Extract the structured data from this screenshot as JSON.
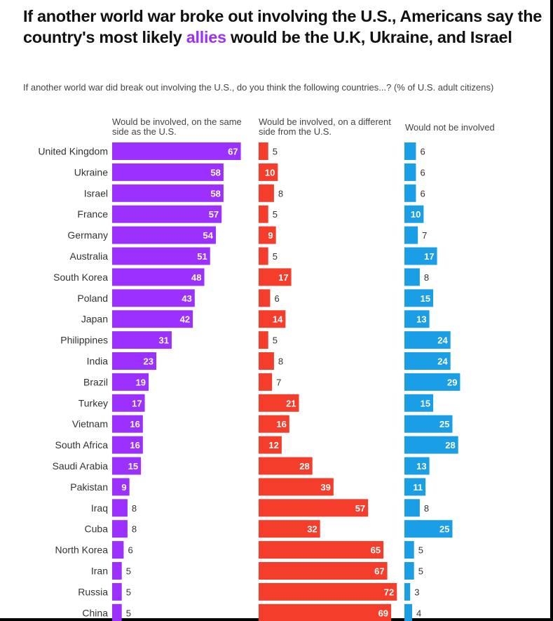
{
  "chart_data": {
    "type": "bar",
    "orientation": "horizontal",
    "title_parts": [
      "If another world war broke out involving the U.S., Americans say the country's most likely ",
      "allies",
      " would be the U.K, Ukraine, and Israel"
    ],
    "subtitle": "If another world war did break out involving the U.S., do you think the following countries...? (% of U.S. adult citizens)",
    "categories": [
      "United Kingdom",
      "Ukraine",
      "Israel",
      "France",
      "Germany",
      "Australia",
      "South Korea",
      "Poland",
      "Japan",
      "Philippines",
      "India",
      "Brazil",
      "Turkey",
      "Vietnam",
      "South Africa",
      "Saudi Arabia",
      "Pakistan",
      "Iraq",
      "Cuba",
      "North Korea",
      "Iran",
      "Russia",
      "China"
    ],
    "series": [
      {
        "name": "Would be involved, on the same side as the U.S.",
        "color": "#9b30ff",
        "values": [
          67,
          58,
          58,
          57,
          54,
          51,
          48,
          43,
          42,
          31,
          23,
          19,
          17,
          16,
          16,
          15,
          9,
          8,
          8,
          6,
          5,
          5,
          5
        ]
      },
      {
        "name": "Would be involved, on a different side from the U.S.",
        "color": "#f43d2b",
        "values": [
          5,
          10,
          8,
          5,
          9,
          5,
          17,
          6,
          14,
          5,
          8,
          7,
          21,
          16,
          12,
          28,
          39,
          57,
          32,
          65,
          67,
          72,
          69
        ]
      },
      {
        "name": "Would not be involved",
        "color": "#1a9fe6",
        "values": [
          6,
          6,
          6,
          10,
          7,
          17,
          8,
          15,
          13,
          24,
          24,
          29,
          15,
          25,
          28,
          13,
          11,
          8,
          25,
          5,
          5,
          3,
          4
        ]
      }
    ],
    "unit": "%",
    "grid": false,
    "legend": "column headers"
  }
}
